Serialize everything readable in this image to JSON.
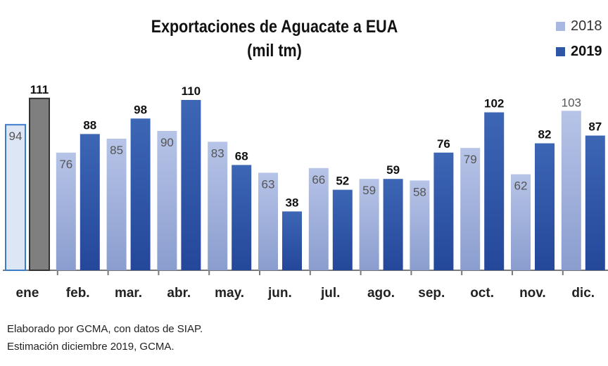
{
  "chart_data": {
    "type": "bar",
    "title_line1": "Exportaciones de Aguacate a EUA",
    "title_line2": "(mil tm)",
    "categories": [
      "ene",
      "feb.",
      "mar.",
      "abr.",
      "may.",
      "jun.",
      "jul.",
      "ago.",
      "sep.",
      "oct.",
      "nov.",
      "dic."
    ],
    "series": [
      {
        "name": "2018",
        "values": [
          94,
          76,
          85,
          90,
          83,
          63,
          66,
          59,
          58,
          79,
          62,
          103
        ],
        "color": "#a9b8e0"
      },
      {
        "name": "2019",
        "values": [
          111,
          88,
          98,
          110,
          68,
          38,
          52,
          59,
          76,
          102,
          82,
          87
        ],
        "color": "#2f56a5"
      }
    ],
    "first_category_colors": {
      "2018": "#dce6f5",
      "2019": "#7f7f7f"
    },
    "ylim": [
      0,
      120
    ],
    "grid": false,
    "legend_position": "top-right"
  },
  "notes": {
    "line1": "Elaborado por GCMA, con datos de SIAP.",
    "line2": "Estimación diciembre 2019, GCMA."
  }
}
